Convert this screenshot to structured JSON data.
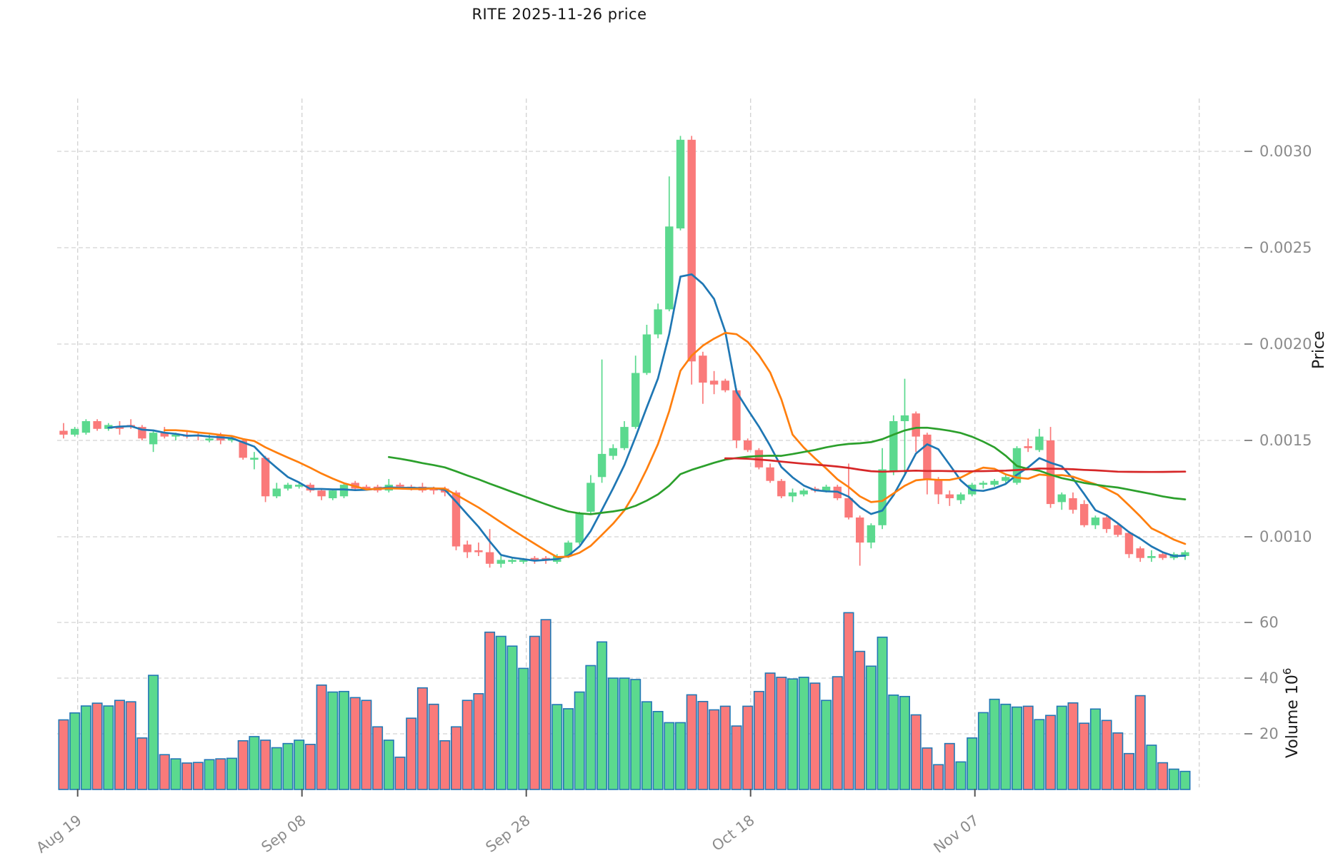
{
  "title": "RITE  2025-11-26  price",
  "colors": {
    "candle_up": "#5bd98e",
    "candle_down": "#fa7a7a",
    "volume_bar_edge": "#2277b5",
    "grid": "#d4d4d4",
    "tick_label": "#8b8b8b",
    "tick_mark": "#555555",
    "axis_title": "#1a1a1a",
    "ma_sma5": "#1f77b4",
    "ma_sma10": "#ff7f0e",
    "ma_sma30": "#2ca02c",
    "ma_sma60": "#d62728"
  },
  "chart_data": {
    "type": "candlestick",
    "title": "RITE  2025-11-26  price",
    "series_start_date": "2025-08-18",
    "x_axis": {
      "tick_labels": [
        "Aug 19",
        "Sep 08",
        "Sep 28",
        "Oct 18",
        "Nov 07"
      ],
      "tick_day_indices": [
        1,
        21,
        41,
        61,
        81
      ],
      "unlabeled_gridline_index": 101
    },
    "price_axis": {
      "label": "Price",
      "tick_labels": [
        "0.0030",
        "0.0025",
        "0.0020",
        "0.0015",
        "0.0010"
      ],
      "tick_values": [
        0.003,
        0.0025,
        0.002,
        0.0015,
        0.001
      ],
      "range": [
        0.00082,
        0.00315
      ]
    },
    "volume_axis": {
      "label_main": "Volume  10",
      "label_exponent": "6",
      "tick_labels": [
        "60",
        "40",
        "20"
      ],
      "tick_values": [
        60,
        40,
        20
      ],
      "unit": "millions"
    },
    "grid": true,
    "legend": "none",
    "moving_averages": [
      {
        "name": "SMA5",
        "period": 5,
        "color_key": "ma_sma5"
      },
      {
        "name": "SMA10",
        "period": 10,
        "color_key": "ma_sma10"
      },
      {
        "name": "SMA30",
        "period": 30,
        "color_key": "ma_sma30"
      },
      {
        "name": "SMA60",
        "period": 60,
        "color_key": "ma_sma60"
      }
    ],
    "candles": {
      "columns": [
        "open",
        "high",
        "low",
        "close",
        "volume_millions"
      ],
      "rows": [
        [
          0.00155,
          0.00159,
          0.00151,
          0.00153,
          25.0
        ],
        [
          0.00153,
          0.00157,
          0.00152,
          0.00156,
          27.5
        ],
        [
          0.00154,
          0.00161,
          0.00153,
          0.0016,
          30.0
        ],
        [
          0.0016,
          0.00161,
          0.00155,
          0.00156,
          31.0
        ],
        [
          0.00156,
          0.00159,
          0.00155,
          0.00158,
          30.0
        ],
        [
          0.00157,
          0.0016,
          0.00153,
          0.00156,
          32.0
        ],
        [
          0.00158,
          0.00161,
          0.00156,
          0.00157,
          31.5
        ],
        [
          0.00157,
          0.00158,
          0.0015,
          0.00151,
          18.5
        ],
        [
          0.00148,
          0.00155,
          0.00144,
          0.00154,
          41.0
        ],
        [
          0.00154,
          0.00157,
          0.00151,
          0.00152,
          12.5
        ],
        [
          0.00152,
          0.00154,
          0.0015,
          0.00153,
          11.0
        ],
        [
          0.00153,
          0.00155,
          0.00151,
          0.00152,
          9.5
        ],
        [
          0.00153,
          0.00154,
          0.0015,
          0.00152,
          9.7
        ],
        [
          0.0015,
          0.00153,
          0.00149,
          0.00151,
          10.7
        ],
        [
          0.00153,
          0.00154,
          0.00148,
          0.0015,
          11.0
        ],
        [
          0.0015,
          0.00152,
          0.00149,
          0.00151,
          11.2
        ],
        [
          0.0015,
          0.00151,
          0.0014,
          0.00141,
          17.5
        ],
        [
          0.0014,
          0.00144,
          0.00135,
          0.00141,
          19.0
        ],
        [
          0.00141,
          0.00142,
          0.00118,
          0.00121,
          17.7
        ],
        [
          0.00121,
          0.00128,
          0.0012,
          0.00125,
          15.0
        ],
        [
          0.00125,
          0.00128,
          0.00124,
          0.00127,
          16.5
        ],
        [
          0.00126,
          0.00128,
          0.00125,
          0.00127,
          17.7
        ],
        [
          0.00127,
          0.00128,
          0.00123,
          0.00124,
          16.2
        ],
        [
          0.00124,
          0.00125,
          0.00119,
          0.00121,
          37.5
        ],
        [
          0.0012,
          0.00125,
          0.00119,
          0.00124,
          35.0
        ],
        [
          0.00121,
          0.00128,
          0.0012,
          0.00127,
          35.2
        ],
        [
          0.00128,
          0.00129,
          0.00124,
          0.00125,
          33.0
        ],
        [
          0.00126,
          0.00127,
          0.00124,
          0.00125,
          32.0
        ],
        [
          0.00126,
          0.00127,
          0.00123,
          0.00124,
          22.5
        ],
        [
          0.00124,
          0.0013,
          0.00123,
          0.00127,
          17.7
        ],
        [
          0.00127,
          0.00128,
          0.00125,
          0.00126,
          11.6
        ],
        [
          0.00126,
          0.00127,
          0.00124,
          0.00125,
          25.6
        ],
        [
          0.00126,
          0.00128,
          0.00123,
          0.00124,
          36.5
        ],
        [
          0.00125,
          0.00126,
          0.00122,
          0.00124,
          30.6
        ],
        [
          0.00125,
          0.00126,
          0.00121,
          0.00123,
          17.5
        ],
        [
          0.00123,
          0.00124,
          0.00093,
          0.00095,
          22.5
        ],
        [
          0.00096,
          0.00098,
          0.00089,
          0.00092,
          32.0
        ],
        [
          0.00093,
          0.00097,
          0.0009,
          0.00092,
          34.4
        ],
        [
          0.00092,
          0.00104,
          0.00084,
          0.00086,
          56.5
        ],
        [
          0.00086,
          0.0009,
          0.00084,
          0.00088,
          55.0
        ],
        [
          0.00087,
          0.00089,
          0.00086,
          0.00088,
          51.5
        ],
        [
          0.00087,
          0.00089,
          0.00086,
          0.00088,
          43.5
        ],
        [
          0.00089,
          0.0009,
          0.00086,
          0.00088,
          55.0
        ],
        [
          0.00089,
          0.0009,
          0.00086,
          0.00088,
          61.0
        ],
        [
          0.00087,
          0.00091,
          0.00086,
          0.0009,
          30.5
        ],
        [
          0.0009,
          0.00098,
          0.00089,
          0.00097,
          29.0
        ],
        [
          0.00097,
          0.00113,
          0.00096,
          0.00112,
          35.0
        ],
        [
          0.00113,
          0.00132,
          0.00112,
          0.00128,
          44.5
        ],
        [
          0.00131,
          0.00192,
          0.00128,
          0.00143,
          53.0
        ],
        [
          0.00142,
          0.00148,
          0.0014,
          0.00146,
          40.0
        ],
        [
          0.00146,
          0.0016,
          0.00145,
          0.00157,
          40.0
        ],
        [
          0.00157,
          0.00194,
          0.00156,
          0.00185,
          39.5
        ],
        [
          0.00185,
          0.0021,
          0.00184,
          0.00205,
          31.5
        ],
        [
          0.00205,
          0.00221,
          0.00203,
          0.00218,
          28.0
        ],
        [
          0.00218,
          0.00287,
          0.00217,
          0.00261,
          24.0
        ],
        [
          0.0026,
          0.00308,
          0.00259,
          0.00306,
          24.0
        ],
        [
          0.00306,
          0.00308,
          0.00179,
          0.00191,
          34.0
        ],
        [
          0.00194,
          0.00196,
          0.00169,
          0.0018,
          31.6
        ],
        [
          0.00181,
          0.00186,
          0.00174,
          0.00179,
          28.6
        ],
        [
          0.00181,
          0.00182,
          0.00175,
          0.00176,
          29.9
        ],
        [
          0.00176,
          0.00177,
          0.00146,
          0.0015,
          22.8
        ],
        [
          0.0015,
          0.00151,
          0.00144,
          0.00145,
          29.9
        ],
        [
          0.00145,
          0.00146,
          0.00135,
          0.00136,
          35.2
        ],
        [
          0.00136,
          0.00138,
          0.00128,
          0.00129,
          41.8
        ],
        [
          0.00129,
          0.0013,
          0.0012,
          0.00121,
          40.3
        ],
        [
          0.00121,
          0.00125,
          0.00118,
          0.00123,
          39.7
        ],
        [
          0.00122,
          0.00125,
          0.00121,
          0.00124,
          40.3
        ],
        [
          0.00125,
          0.00126,
          0.00123,
          0.00124,
          38.2
        ],
        [
          0.00124,
          0.00127,
          0.00123,
          0.00126,
          32.0
        ],
        [
          0.00126,
          0.00127,
          0.00119,
          0.0012,
          40.5
        ],
        [
          0.0012,
          0.00138,
          0.00109,
          0.0011,
          63.5
        ],
        [
          0.0011,
          0.00111,
          0.00085,
          0.00097,
          49.6
        ],
        [
          0.00097,
          0.00107,
          0.00094,
          0.00106,
          44.3
        ],
        [
          0.00106,
          0.00146,
          0.00104,
          0.00135,
          54.7
        ],
        [
          0.00134,
          0.00163,
          0.00132,
          0.0016,
          33.9
        ],
        [
          0.0016,
          0.00182,
          0.00133,
          0.00163,
          33.4
        ],
        [
          0.00164,
          0.00165,
          0.00144,
          0.00152,
          26.8
        ],
        [
          0.00153,
          0.00154,
          0.00122,
          0.0013,
          14.9
        ],
        [
          0.0013,
          0.00131,
          0.00117,
          0.00122,
          8.9
        ],
        [
          0.00122,
          0.00124,
          0.00116,
          0.0012,
          16.5
        ],
        [
          0.00119,
          0.00123,
          0.00117,
          0.00122,
          9.9
        ],
        [
          0.00122,
          0.00128,
          0.00121,
          0.00127,
          18.5
        ],
        [
          0.00127,
          0.00129,
          0.00125,
          0.00128,
          27.6
        ],
        [
          0.00127,
          0.0013,
          0.00126,
          0.00129,
          32.4
        ],
        [
          0.00129,
          0.00132,
          0.00128,
          0.00131,
          30.6
        ],
        [
          0.00128,
          0.00147,
          0.00127,
          0.00146,
          29.6
        ],
        [
          0.00147,
          0.00151,
          0.00144,
          0.00146,
          29.9
        ],
        [
          0.00145,
          0.00156,
          0.00144,
          0.00152,
          25.1
        ],
        [
          0.0015,
          0.00157,
          0.00115,
          0.00117,
          26.6
        ],
        [
          0.00118,
          0.00123,
          0.00114,
          0.00122,
          29.9
        ],
        [
          0.0012,
          0.00123,
          0.00112,
          0.00114,
          31.1
        ],
        [
          0.00117,
          0.00119,
          0.00105,
          0.00106,
          23.8
        ],
        [
          0.00106,
          0.00111,
          0.00104,
          0.0011,
          28.9
        ],
        [
          0.0011,
          0.00111,
          0.00102,
          0.00104,
          24.8
        ],
        [
          0.00106,
          0.00107,
          0.001,
          0.00101,
          20.3
        ],
        [
          0.00102,
          0.00103,
          0.00089,
          0.00091,
          12.9
        ],
        [
          0.00094,
          0.00095,
          0.00087,
          0.00089,
          33.7
        ],
        [
          0.00089,
          0.00093,
          0.00087,
          0.0009,
          15.9
        ],
        [
          0.00091,
          0.00092,
          0.00088,
          0.00089,
          9.6
        ],
        [
          0.00089,
          0.00092,
          0.00088,
          0.00091,
          7.3
        ],
        [
          0.0009,
          0.00093,
          0.00088,
          0.00092,
          6.5
        ]
      ]
    }
  }
}
